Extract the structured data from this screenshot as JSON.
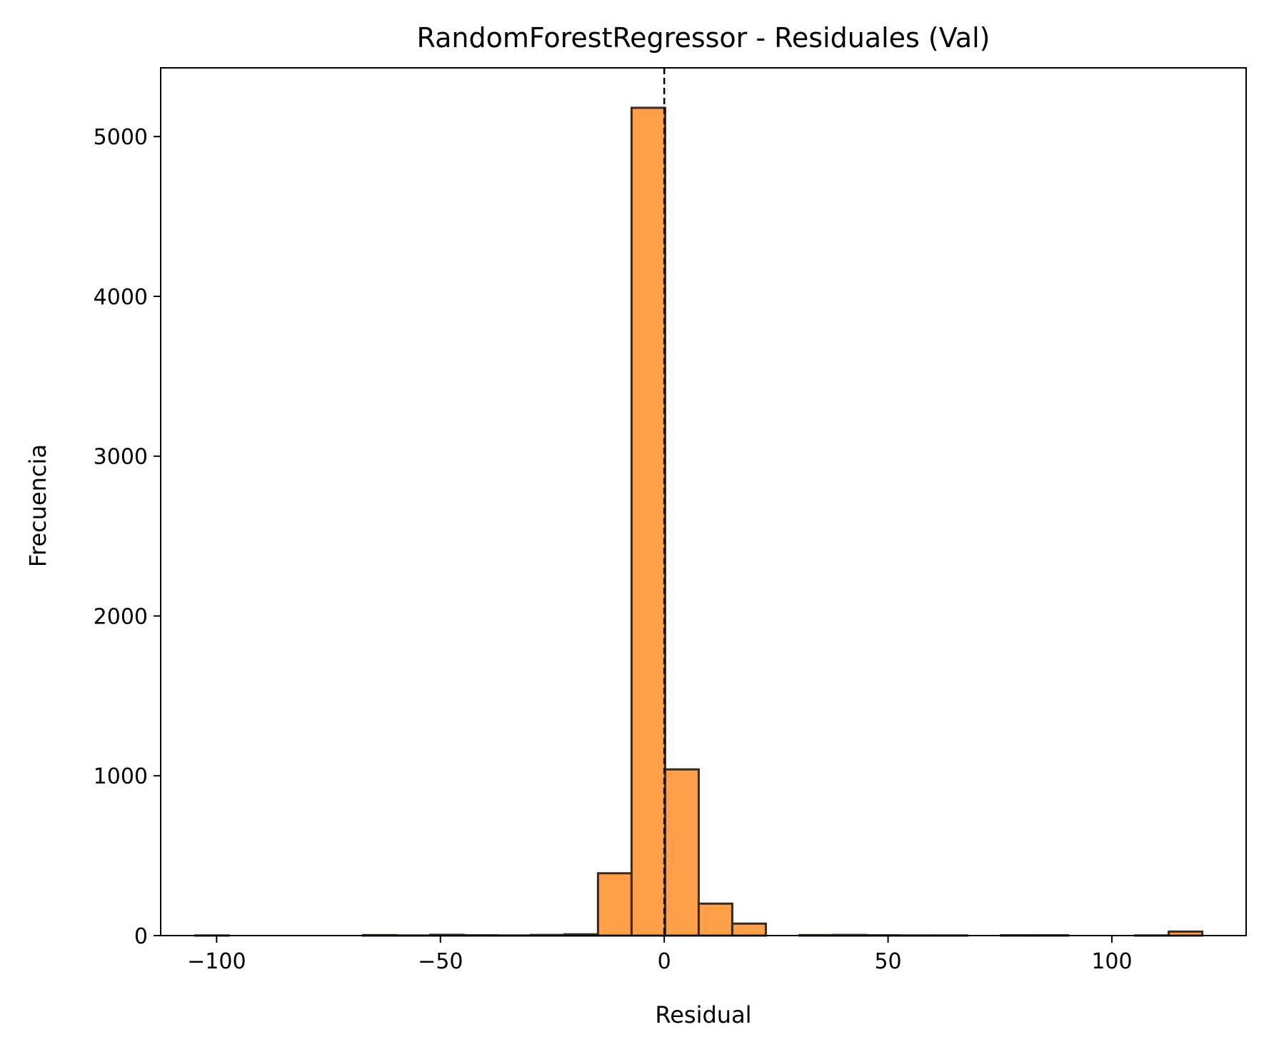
{
  "chart_data": {
    "type": "bar",
    "title": "RandomForestRegressor - Residuales (Val)",
    "xlabel": "Residual",
    "ylabel": "Frecuencia",
    "xlim": [
      -112.5,
      130
    ],
    "ylim": [
      0,
      5430
    ],
    "xticks": [
      -100,
      -50,
      0,
      50,
      100
    ],
    "xtick_labels": [
      "−100",
      "−50",
      "0",
      "50",
      "100"
    ],
    "yticks": [
      0,
      1000,
      2000,
      3000,
      4000,
      5000
    ],
    "ytick_labels": [
      "0",
      "1000",
      "2000",
      "3000",
      "4000",
      "5000"
    ],
    "bin_edges": [
      -104.8,
      -97.3,
      -89.8,
      -82.3,
      -74.8,
      -67.3,
      -59.8,
      -52.3,
      -44.8,
      -37.3,
      -29.8,
      -22.3,
      -14.8,
      -7.3,
      0.2,
      7.7,
      15.2,
      22.7,
      30.2,
      37.7,
      45.2,
      52.7,
      60.2,
      67.7,
      75.2,
      82.7,
      90.2,
      97.7,
      105.2,
      112.7,
      120.2
    ],
    "values": [
      1,
      0,
      0,
      0,
      0,
      3,
      1,
      5,
      2,
      1,
      4,
      8,
      390,
      5180,
      1040,
      200,
      75,
      0,
      3,
      4,
      2,
      1,
      1,
      0,
      2,
      2,
      0,
      0,
      1,
      25
    ],
    "vline": {
      "x": 0,
      "style": "dashed"
    },
    "grid": false,
    "colors": {
      "bar_fill": "#ff9f4a",
      "bar_edge": "#3a2a1e",
      "axis": "#000000"
    }
  }
}
